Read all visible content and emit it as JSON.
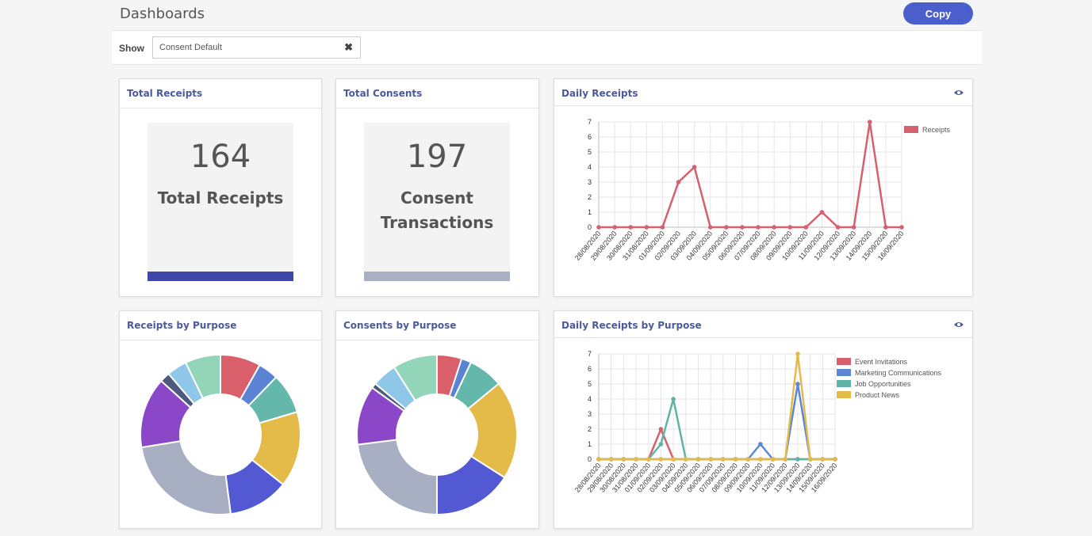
{
  "header": {
    "title": "Dashboards",
    "copy_label": "Copy"
  },
  "filter": {
    "show_label": "Show",
    "selected": "Consent Default"
  },
  "cards": {
    "total_receipts": {
      "title": "Total Receipts",
      "value": "164",
      "label": "Total Receipts",
      "bar_color": "#3f48a8"
    },
    "total_consents": {
      "title": "Total Consents",
      "value": "197",
      "label_line1": "Consent",
      "label_line2": "Transactions",
      "bar_color": "#a9b0c3"
    },
    "daily_receipts": {
      "title": "Daily Receipts"
    },
    "receipts_by_purpose": {
      "title": "Receipts by Purpose"
    },
    "consents_by_purpose": {
      "title": "Consents by Purpose"
    },
    "daily_receipts_by_purpose": {
      "title": "Daily Receipts by Purpose"
    }
  },
  "icons": {
    "eye": "eye-icon",
    "clear": "close-icon"
  },
  "chart_data": [
    {
      "id": "daily_receipts",
      "type": "line",
      "x": [
        "28/08/2020",
        "29/08/2020",
        "30/08/2020",
        "31/08/2020",
        "01/09/2020",
        "02/09/2020",
        "03/09/2020",
        "04/09/2020",
        "05/09/2020",
        "06/09/2020",
        "07/09/2020",
        "08/09/2020",
        "09/09/2020",
        "10/09/2020",
        "11/09/2020",
        "12/09/2020",
        "13/09/2020",
        "14/09/2020",
        "15/09/2020",
        "16/09/2020"
      ],
      "yticks": [
        "0",
        "1",
        "2",
        "3",
        "4",
        "5",
        "6",
        "7"
      ],
      "ylim": [
        0,
        7
      ],
      "grid": true,
      "legend": "top-right",
      "series": [
        {
          "name": "Receipts",
          "color": "#d6606e",
          "values": [
            0,
            0,
            0,
            0,
            0,
            3,
            4,
            0,
            0,
            0,
            0,
            0,
            0,
            0,
            1,
            0,
            0,
            7,
            0,
            0
          ]
        }
      ]
    },
    {
      "id": "daily_receipts_by_purpose",
      "type": "line",
      "x": [
        "28/08/2020",
        "29/08/2020",
        "30/08/2020",
        "31/08/2020",
        "01/09/2020",
        "02/09/2020",
        "03/09/2020",
        "04/09/2020",
        "05/09/2020",
        "06/09/2020",
        "07/09/2020",
        "08/09/2020",
        "09/09/2020",
        "10/09/2020",
        "11/09/2020",
        "12/09/2020",
        "13/09/2020",
        "14/09/2020",
        "15/09/2020",
        "16/09/2020"
      ],
      "yticks": [
        "0",
        "1",
        "2",
        "3",
        "4",
        "5",
        "6",
        "7"
      ],
      "ylim": [
        0,
        7
      ],
      "grid": true,
      "legend": "top-right",
      "series": [
        {
          "name": "Event Invitations",
          "color": "#d6606e",
          "values": [
            0,
            0,
            0,
            0,
            0,
            2,
            0,
            0,
            0,
            0,
            0,
            0,
            0,
            0,
            0,
            0,
            0,
            0,
            0,
            0
          ]
        },
        {
          "name": "Marketing Communications",
          "color": "#5b87d6",
          "values": [
            0,
            0,
            0,
            0,
            0,
            0,
            0,
            0,
            0,
            0,
            0,
            0,
            0,
            1,
            0,
            0,
            5,
            0,
            0,
            0
          ]
        },
        {
          "name": "Job Opportunities",
          "color": "#5fb5a5",
          "values": [
            0,
            0,
            0,
            0,
            0,
            1,
            4,
            0,
            0,
            0,
            0,
            0,
            0,
            0,
            0,
            0,
            0,
            0,
            0,
            0
          ]
        },
        {
          "name": "Product News",
          "color": "#e3bb4a",
          "values": [
            0,
            0,
            0,
            0,
            0,
            0,
            0,
            0,
            0,
            0,
            0,
            0,
            0,
            0,
            0,
            0,
            7,
            0,
            0,
            0
          ]
        }
      ]
    },
    {
      "id": "receipts_by_purpose",
      "type": "pie",
      "donut": true,
      "slices": [
        {
          "value": 8,
          "color": "#d95f6a"
        },
        {
          "value": 4,
          "color": "#5a83d3"
        },
        {
          "value": 8,
          "color": "#63b7ab"
        },
        {
          "value": 15,
          "color": "#e4ba48"
        },
        {
          "value": 12,
          "color": "#5259d3"
        },
        {
          "value": 24,
          "color": "#a9afc2"
        },
        {
          "value": 14,
          "color": "#8a48c8"
        },
        {
          "value": 2,
          "color": "#4e5a7d"
        },
        {
          "value": 4,
          "color": "#8ec7e8"
        },
        {
          "value": 7,
          "color": "#92d5b8"
        }
      ]
    },
    {
      "id": "consents_by_purpose",
      "type": "pie",
      "donut": true,
      "slices": [
        {
          "value": 5,
          "color": "#d95f6a"
        },
        {
          "value": 2,
          "color": "#5a83d3"
        },
        {
          "value": 7,
          "color": "#63b7ab"
        },
        {
          "value": 20,
          "color": "#e4ba48"
        },
        {
          "value": 16,
          "color": "#5259d3"
        },
        {
          "value": 23,
          "color": "#a9afc2"
        },
        {
          "value": 12,
          "color": "#8a48c8"
        },
        {
          "value": 1,
          "color": "#4e5a7d"
        },
        {
          "value": 5,
          "color": "#8ec7e8"
        },
        {
          "value": 9,
          "color": "#92d5b8"
        }
      ]
    }
  ]
}
